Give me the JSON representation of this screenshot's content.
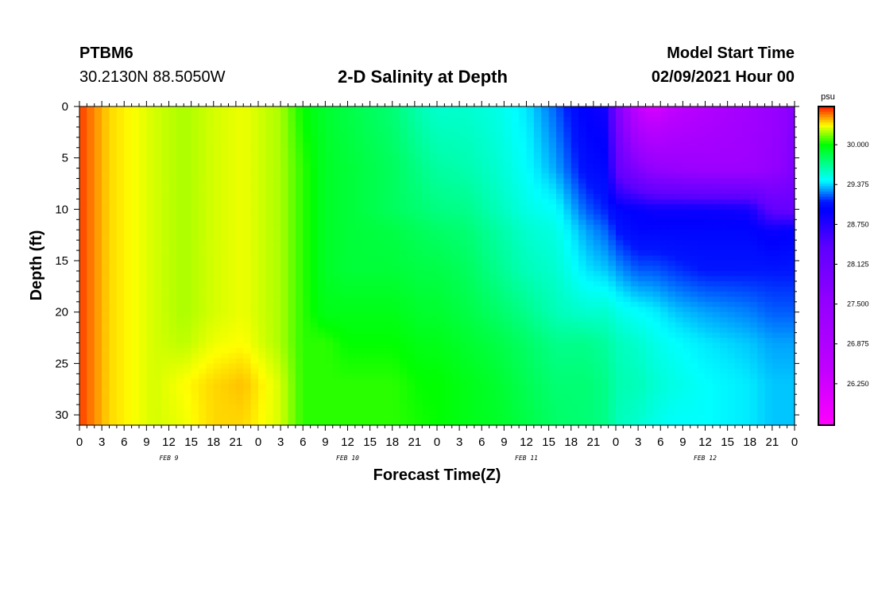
{
  "header": {
    "station_id": "PTBM6",
    "station_coords": "30.2130N 88.5050W",
    "title": "2-D Salinity at Depth",
    "start_label": "Model Start Time",
    "start_value": "02/09/2021 Hour 00"
  },
  "chart_data": {
    "type": "heatmap",
    "title": "2-D Salinity at Depth",
    "xlabel": "Forecast Time(Z)",
    "ylabel": "Depth (ft)",
    "x_tick_labels": [
      "0",
      "3",
      "6",
      "9",
      "12",
      "15",
      "18",
      "21",
      "0",
      "3",
      "6",
      "9",
      "12",
      "15",
      "18",
      "21",
      "0",
      "3",
      "6",
      "9",
      "12",
      "15",
      "18",
      "21",
      "0",
      "3",
      "6",
      "9",
      "12",
      "15",
      "18",
      "21",
      "0"
    ],
    "x_range_hours": [
      0,
      96
    ],
    "date_labels": [
      {
        "text": "FEB 9",
        "hour": 12
      },
      {
        "text": "FEB 10",
        "hour": 36
      },
      {
        "text": "FEB 11",
        "hour": 60
      },
      {
        "text": "FEB 12",
        "hour": 84
      }
    ],
    "y_ticks": [
      0,
      5,
      10,
      15,
      20,
      25,
      30
    ],
    "y_range": [
      0,
      31
    ],
    "colorbar": {
      "unit": "psu",
      "range": [
        25.6,
        30.6
      ],
      "tick_labels": [
        "30.000",
        "29.375",
        "28.750",
        "28.125",
        "27.500",
        "26.875",
        "26.250"
      ],
      "tick_values": [
        30.0,
        29.375,
        28.75,
        28.125,
        27.5,
        26.875,
        26.25
      ]
    },
    "approx_salinity_grid": {
      "hours": [
        0,
        1,
        2,
        4,
        7,
        10,
        14,
        18,
        22,
        27,
        30,
        33,
        36,
        42,
        46,
        48,
        52,
        56,
        60,
        64,
        68,
        71,
        72,
        75,
        77,
        80,
        84,
        90,
        93,
        95,
        96
      ],
      "depths": [
        0,
        6,
        10,
        12,
        16,
        20,
        23,
        27,
        31
      ],
      "values": [
        [
          30.55,
          30.55,
          30.55,
          30.55,
          30.55,
          30.55,
          30.55,
          30.55,
          30.55
        ],
        [
          30.5,
          30.5,
          30.5,
          30.5,
          30.5,
          30.5,
          30.5,
          30.5,
          30.5
        ],
        [
          30.45,
          30.45,
          30.45,
          30.45,
          30.45,
          30.45,
          30.45,
          30.45,
          30.45
        ],
        [
          30.35,
          30.35,
          30.35,
          30.35,
          30.35,
          30.35,
          30.35,
          30.35,
          30.35
        ],
        [
          30.3,
          30.3,
          30.3,
          30.3,
          30.3,
          30.3,
          30.3,
          30.3,
          30.3
        ],
        [
          30.25,
          30.25,
          30.25,
          30.25,
          30.25,
          30.25,
          30.25,
          30.25,
          30.25
        ],
        [
          30.2,
          30.2,
          30.2,
          30.2,
          30.2,
          30.2,
          30.22,
          30.3,
          30.28
        ],
        [
          30.25,
          30.25,
          30.25,
          30.25,
          30.25,
          30.25,
          30.28,
          30.35,
          30.35
        ],
        [
          30.28,
          30.28,
          30.28,
          30.28,
          30.28,
          30.28,
          30.3,
          30.38,
          30.35
        ],
        [
          30.2,
          30.2,
          30.2,
          30.2,
          30.2,
          30.2,
          30.2,
          30.25,
          30.25
        ],
        [
          30.0,
          30.05,
          30.05,
          30.05,
          30.05,
          30.05,
          30.05,
          30.05,
          30.05
        ],
        [
          29.9,
          29.92,
          29.92,
          29.92,
          29.92,
          29.95,
          30.05,
          30.05,
          30.05
        ],
        [
          29.85,
          29.88,
          29.88,
          29.88,
          29.88,
          29.95,
          30.0,
          30.05,
          30.05
        ],
        [
          29.75,
          29.8,
          29.8,
          29.85,
          29.88,
          29.95,
          30.0,
          30.05,
          30.05
        ],
        [
          29.6,
          29.7,
          29.75,
          29.8,
          29.85,
          29.9,
          29.95,
          30.0,
          30.02
        ],
        [
          29.55,
          29.65,
          29.72,
          29.78,
          29.85,
          29.9,
          29.95,
          30.0,
          30.0
        ],
        [
          29.55,
          29.62,
          29.7,
          29.75,
          29.8,
          29.85,
          29.9,
          29.95,
          29.95
        ],
        [
          29.5,
          29.55,
          29.6,
          29.65,
          29.7,
          29.78,
          29.85,
          29.9,
          29.92
        ],
        [
          29.4,
          29.45,
          29.5,
          29.55,
          29.6,
          29.7,
          29.78,
          29.82,
          29.85
        ],
        [
          29.2,
          29.3,
          29.45,
          29.5,
          29.55,
          29.6,
          29.7,
          29.75,
          29.78
        ],
        [
          28.95,
          29.05,
          29.2,
          29.3,
          29.4,
          29.55,
          29.7,
          29.75,
          29.75
        ],
        [
          28.85,
          29.0,
          29.1,
          29.2,
          29.35,
          29.55,
          29.65,
          29.7,
          29.7
        ],
        [
          28.0,
          28.3,
          29.0,
          29.1,
          29.3,
          29.5,
          29.6,
          29.62,
          29.6
        ],
        [
          26.4,
          27.8,
          28.95,
          29.0,
          29.2,
          29.45,
          29.55,
          29.6,
          29.55
        ],
        [
          26.1,
          27.5,
          28.9,
          29.0,
          29.2,
          29.42,
          29.5,
          29.55,
          29.5
        ],
        [
          26.5,
          27.4,
          28.9,
          29.0,
          29.15,
          29.35,
          29.45,
          29.5,
          29.45
        ],
        [
          26.8,
          27.3,
          28.9,
          29.0,
          29.1,
          29.3,
          29.4,
          29.45,
          29.45
        ],
        [
          27.2,
          27.3,
          28.85,
          29.0,
          29.1,
          29.25,
          29.35,
          29.4,
          29.4
        ],
        [
          27.4,
          27.5,
          28.3,
          28.9,
          29.1,
          29.2,
          29.3,
          29.35,
          29.35
        ],
        [
          27.6,
          27.7,
          28.3,
          28.95,
          29.1,
          29.2,
          29.3,
          29.35,
          29.35
        ],
        [
          27.8,
          27.9,
          28.2,
          28.95,
          29.1,
          29.2,
          29.3,
          29.35,
          29.35
        ]
      ]
    }
  }
}
